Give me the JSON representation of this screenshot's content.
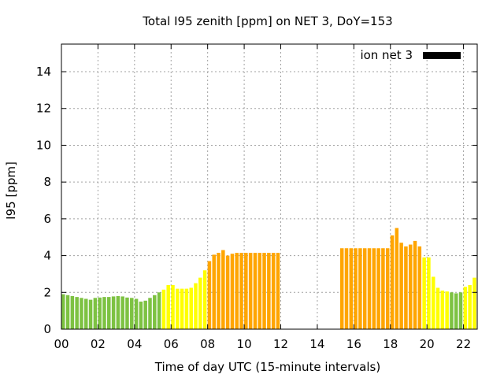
{
  "chart_data": {
    "type": "bar",
    "title": "Total I95 zenith [ppm] on NET 3, DoY=153",
    "xlabel": "Time of day UTC (15-minute intervals)",
    "ylabel": "I95 [ppm]",
    "xlim": [
      0,
      22.75
    ],
    "ylim": [
      0,
      15.5
    ],
    "xticks": [
      "00",
      "02",
      "04",
      "06",
      "08",
      "10",
      "12",
      "14",
      "16",
      "18",
      "20",
      "22"
    ],
    "yticks": [
      "0",
      "2",
      "4",
      "6",
      "8",
      "10",
      "12",
      "14"
    ],
    "grid": true,
    "legend": {
      "position": "top-right",
      "label": "ion net 3",
      "color": "#000000"
    },
    "colors": {
      "green": "#7dc242",
      "yellow": "#ffff00",
      "orange": "#ffa500"
    },
    "bars": [
      {
        "x": 0.0,
        "value": 1.9,
        "color": "green"
      },
      {
        "x": 0.25,
        "value": 1.85,
        "color": "green"
      },
      {
        "x": 0.5,
        "value": 1.8,
        "color": "green"
      },
      {
        "x": 0.75,
        "value": 1.75,
        "color": "green"
      },
      {
        "x": 1.0,
        "value": 1.7,
        "color": "green"
      },
      {
        "x": 1.25,
        "value": 1.65,
        "color": "green"
      },
      {
        "x": 1.5,
        "value": 1.6,
        "color": "green"
      },
      {
        "x": 1.75,
        "value": 1.7,
        "color": "green"
      },
      {
        "x": 2.0,
        "value": 1.72,
        "color": "green"
      },
      {
        "x": 2.25,
        "value": 1.75,
        "color": "green"
      },
      {
        "x": 2.5,
        "value": 1.75,
        "color": "green"
      },
      {
        "x": 2.75,
        "value": 1.78,
        "color": "green"
      },
      {
        "x": 3.0,
        "value": 1.8,
        "color": "green"
      },
      {
        "x": 3.25,
        "value": 1.78,
        "color": "green"
      },
      {
        "x": 3.5,
        "value": 1.72,
        "color": "green"
      },
      {
        "x": 3.75,
        "value": 1.7,
        "color": "green"
      },
      {
        "x": 4.0,
        "value": 1.65,
        "color": "green"
      },
      {
        "x": 4.25,
        "value": 1.5,
        "color": "green"
      },
      {
        "x": 4.5,
        "value": 1.55,
        "color": "green"
      },
      {
        "x": 4.75,
        "value": 1.7,
        "color": "green"
      },
      {
        "x": 5.0,
        "value": 1.85,
        "color": "green"
      },
      {
        "x": 5.25,
        "value": 2.0,
        "color": "green"
      },
      {
        "x": 5.5,
        "value": 2.15,
        "color": "yellow"
      },
      {
        "x": 5.75,
        "value": 2.4,
        "color": "yellow"
      },
      {
        "x": 6.0,
        "value": 2.4,
        "color": "yellow"
      },
      {
        "x": 6.25,
        "value": 2.2,
        "color": "yellow"
      },
      {
        "x": 6.5,
        "value": 2.2,
        "color": "yellow"
      },
      {
        "x": 6.75,
        "value": 2.2,
        "color": "yellow"
      },
      {
        "x": 7.0,
        "value": 2.25,
        "color": "yellow"
      },
      {
        "x": 7.25,
        "value": 2.5,
        "color": "yellow"
      },
      {
        "x": 7.5,
        "value": 2.8,
        "color": "yellow"
      },
      {
        "x": 7.75,
        "value": 3.2,
        "color": "yellow"
      },
      {
        "x": 8.0,
        "value": 3.7,
        "color": "orange"
      },
      {
        "x": 8.25,
        "value": 4.05,
        "color": "orange"
      },
      {
        "x": 8.5,
        "value": 4.15,
        "color": "orange"
      },
      {
        "x": 8.75,
        "value": 4.3,
        "color": "orange"
      },
      {
        "x": 9.0,
        "value": 4.0,
        "color": "orange"
      },
      {
        "x": 9.25,
        "value": 4.1,
        "color": "orange"
      },
      {
        "x": 9.5,
        "value": 4.15,
        "color": "orange"
      },
      {
        "x": 9.75,
        "value": 4.15,
        "color": "orange"
      },
      {
        "x": 10.0,
        "value": 4.15,
        "color": "orange"
      },
      {
        "x": 10.25,
        "value": 4.15,
        "color": "orange"
      },
      {
        "x": 10.5,
        "value": 4.15,
        "color": "orange"
      },
      {
        "x": 10.75,
        "value": 4.15,
        "color": "orange"
      },
      {
        "x": 11.0,
        "value": 4.15,
        "color": "orange"
      },
      {
        "x": 11.25,
        "value": 4.15,
        "color": "orange"
      },
      {
        "x": 11.5,
        "value": 4.15,
        "color": "orange"
      },
      {
        "x": 11.75,
        "value": 4.15,
        "color": "orange"
      },
      {
        "x": 15.25,
        "value": 4.4,
        "color": "orange"
      },
      {
        "x": 15.5,
        "value": 4.4,
        "color": "orange"
      },
      {
        "x": 15.75,
        "value": 4.4,
        "color": "orange"
      },
      {
        "x": 16.0,
        "value": 4.4,
        "color": "orange"
      },
      {
        "x": 16.25,
        "value": 4.4,
        "color": "orange"
      },
      {
        "x": 16.5,
        "value": 4.4,
        "color": "orange"
      },
      {
        "x": 16.75,
        "value": 4.4,
        "color": "orange"
      },
      {
        "x": 17.0,
        "value": 4.4,
        "color": "orange"
      },
      {
        "x": 17.25,
        "value": 4.4,
        "color": "orange"
      },
      {
        "x": 17.5,
        "value": 4.4,
        "color": "orange"
      },
      {
        "x": 17.75,
        "value": 4.4,
        "color": "orange"
      },
      {
        "x": 18.0,
        "value": 5.1,
        "color": "orange"
      },
      {
        "x": 18.25,
        "value": 5.5,
        "color": "orange"
      },
      {
        "x": 18.5,
        "value": 4.7,
        "color": "orange"
      },
      {
        "x": 18.75,
        "value": 4.5,
        "color": "orange"
      },
      {
        "x": 19.0,
        "value": 4.6,
        "color": "orange"
      },
      {
        "x": 19.25,
        "value": 4.8,
        "color": "orange"
      },
      {
        "x": 19.5,
        "value": 4.5,
        "color": "orange"
      },
      {
        "x": 19.75,
        "value": 3.9,
        "color": "yellow"
      },
      {
        "x": 20.0,
        "value": 3.9,
        "color": "yellow"
      },
      {
        "x": 20.25,
        "value": 2.85,
        "color": "yellow"
      },
      {
        "x": 20.5,
        "value": 2.25,
        "color": "yellow"
      },
      {
        "x": 20.75,
        "value": 2.1,
        "color": "yellow"
      },
      {
        "x": 21.0,
        "value": 2.05,
        "color": "yellow"
      },
      {
        "x": 21.25,
        "value": 2.0,
        "color": "green"
      },
      {
        "x": 21.5,
        "value": 1.95,
        "color": "green"
      },
      {
        "x": 21.75,
        "value": 2.0,
        "color": "green"
      },
      {
        "x": 22.0,
        "value": 2.3,
        "color": "yellow"
      },
      {
        "x": 22.25,
        "value": 2.4,
        "color": "yellow"
      },
      {
        "x": 22.5,
        "value": 2.8,
        "color": "yellow"
      }
    ]
  }
}
